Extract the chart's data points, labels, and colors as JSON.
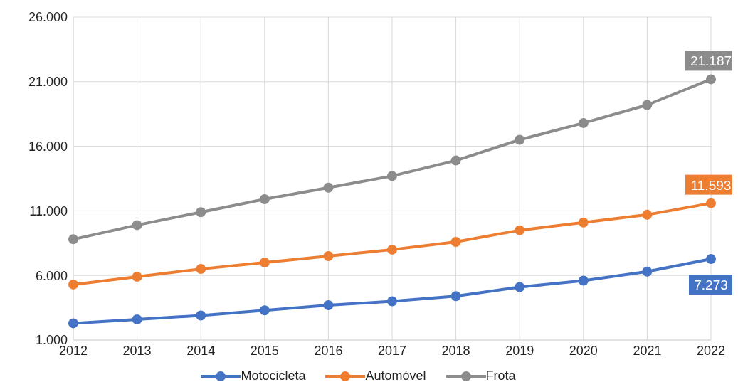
{
  "chart_data": {
    "type": "line",
    "categories": [
      "2012",
      "2013",
      "2014",
      "2015",
      "2016",
      "2017",
      "2018",
      "2019",
      "2020",
      "2021",
      "2022"
    ],
    "series": [
      {
        "name": "Motocicleta",
        "color": "#4472c4",
        "values": [
          2300,
          2600,
          2900,
          3300,
          3700,
          4000,
          4400,
          5100,
          5600,
          6300,
          7273
        ],
        "value_labels": [
          null,
          null,
          null,
          null,
          null,
          null,
          null,
          null,
          null,
          null,
          "7.273"
        ]
      },
      {
        "name": "Automóvel",
        "color": "#ed7d31",
        "values": [
          5300,
          5900,
          6500,
          7000,
          7500,
          8000,
          8600,
          9500,
          10100,
          10700,
          11593
        ],
        "value_labels": [
          null,
          null,
          null,
          null,
          null,
          null,
          null,
          null,
          null,
          null,
          "11.593"
        ]
      },
      {
        "name": "Frota",
        "color": "#8c8c8c",
        "values": [
          8800,
          9900,
          10900,
          11900,
          12800,
          13700,
          14900,
          16500,
          17800,
          19200,
          21187
        ],
        "value_labels": [
          null,
          null,
          null,
          null,
          null,
          null,
          null,
          null,
          null,
          null,
          "21.187"
        ]
      }
    ],
    "ylim": [
      1000,
      26000
    ],
    "yticks": [
      {
        "value": 1000,
        "label": "1.000"
      },
      {
        "value": 6000,
        "label": "6.000"
      },
      {
        "value": 11000,
        "label": "11.000"
      },
      {
        "value": 16000,
        "label": "16.000"
      },
      {
        "value": 21000,
        "label": "21.000"
      },
      {
        "value": 26000,
        "label": "26.000"
      }
    ],
    "grid": true,
    "legend": "bottom",
    "marker": "circle",
    "line_style": "solid"
  }
}
